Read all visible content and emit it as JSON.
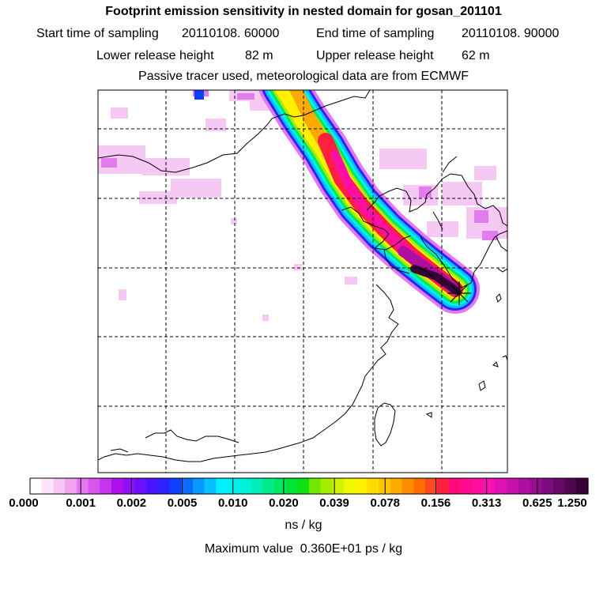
{
  "header": {
    "title": "Footprint emission sensitivity in nested domain for gosan_201101",
    "start_label": "Start time of sampling",
    "start_value": "20110108. 60000",
    "end_label": "End time of sampling",
    "end_value": "20110108. 90000",
    "lower_label": "Lower release height",
    "lower_value": "82 m",
    "upper_label": "Upper release height",
    "upper_value": "62 m",
    "tracer_note": "Passive tracer used, meteorological data are from ECMWF"
  },
  "map": {
    "site_marker": "release-site-cross-icon",
    "land_outline_color": "#000000",
    "grid_line_color": "#000000"
  },
  "colorbar": {
    "ticks": [
      "0.000",
      "0.001",
      "0.002",
      "0.005",
      "0.010",
      "0.020",
      "0.039",
      "0.078",
      "0.156",
      "0.313",
      "0.625",
      "1.250"
    ],
    "colors": [
      "#ffffff",
      "#fde6fb",
      "#f8c6f6",
      "#f0a4f2",
      "#e577ef",
      "#d855ee",
      "#c634ee",
      "#b010f0",
      "#8f10f8",
      "#6a10fb",
      "#4a14ff",
      "#2c24ff",
      "#1040ff",
      "#0a6cff",
      "#0898ff",
      "#08c0ff",
      "#00f0ff",
      "#00f0ee",
      "#00f0d8",
      "#00eeb8",
      "#00ec88",
      "#00e860",
      "#00e438",
      "#10e010",
      "#70e800",
      "#a4ee00",
      "#d0f400",
      "#f0f800",
      "#fff000",
      "#ffdc00",
      "#ffc400",
      "#ffaa00",
      "#ff8c00",
      "#ff6c00",
      "#ff4a20",
      "#ff2040",
      "#ff0a78",
      "#ff0a90",
      "#ff10a0",
      "#f810b0",
      "#e010b4",
      "#c810ac",
      "#b00ea0",
      "#980c94",
      "#7e0a80",
      "#660868",
      "#4e0650",
      "#380438"
    ],
    "units": "ns / kg",
    "max_label": "Maximum value",
    "max_value": "0.360E+01 ps / kg"
  }
}
